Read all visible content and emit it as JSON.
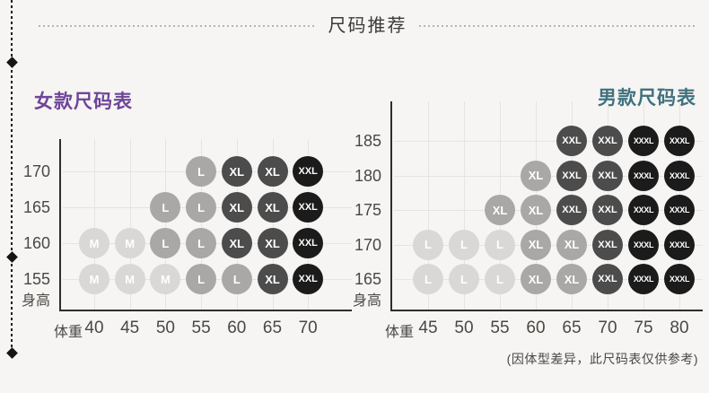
{
  "page": {
    "background": "#f6f5f3",
    "header_title": "尺码推荐",
    "footnote": "(因体型差异，此尺码表仅供参考)"
  },
  "colors": {
    "women_title": "#6f459a",
    "men_title": "#40717f",
    "size_light": "#d9d8d6",
    "size_medium": "#a9a8a6",
    "size_dark": "#4c4c4c",
    "size_black": "#1b1b1b",
    "axis": "#2e2d2b",
    "gridline": "#e6e4e0"
  },
  "chart_data": [
    {
      "type": "scatter",
      "title": "女款尺码表",
      "title_color": "#6f459a",
      "xlabel": "体重",
      "ylabel": "身高",
      "x_ticks": [
        "40",
        "45",
        "50",
        "55",
        "60",
        "65",
        "70"
      ],
      "y_ticks": [
        "170",
        "165",
        "160",
        "155"
      ],
      "grid": true,
      "legend": "none",
      "size_colors": {
        "M": "#d9d8d6",
        "L": "#a9a8a6",
        "XL": "#4c4c4c",
        "XXL": "#1b1b1b"
      },
      "matrix": [
        [
          null,
          null,
          null,
          "L",
          "XL",
          "XL",
          "XXL"
        ],
        [
          null,
          null,
          "L",
          "L",
          "XL",
          "XL",
          "XXL"
        ],
        [
          "M",
          "M",
          "L",
          "L",
          "XL",
          "XL",
          "XXL"
        ],
        [
          "M",
          "M",
          "M",
          "L",
          "L",
          "XL",
          "XXL"
        ]
      ]
    },
    {
      "type": "scatter",
      "title": "男款尺码表",
      "title_color": "#40717f",
      "xlabel": "体重",
      "ylabel": "身高",
      "x_ticks": [
        "45",
        "50",
        "55",
        "60",
        "65",
        "70",
        "75",
        "80"
      ],
      "y_ticks": [
        "185",
        "180",
        "175",
        "170",
        "165"
      ],
      "grid": true,
      "legend": "none",
      "size_colors": {
        "L": "#d9d8d6",
        "XL": "#a9a8a6",
        "XXL": "#4c4c4c",
        "XXXL": "#1b1b1b"
      },
      "matrix": [
        [
          null,
          null,
          null,
          null,
          "XXL",
          "XXL",
          "XXXL",
          "XXXL"
        ],
        [
          null,
          null,
          null,
          "XL",
          "XXL",
          "XXL",
          "XXXL",
          "XXXL"
        ],
        [
          null,
          null,
          "XL",
          "XL",
          "XXL",
          "XXL",
          "XXXL",
          "XXXL"
        ],
        [
          "L",
          "L",
          "L",
          "XL",
          "XL",
          "XXL",
          "XXXL",
          "XXXL"
        ],
        [
          "L",
          "L",
          "L",
          "XL",
          "XL",
          "XXL",
          "XXXL",
          "XXXL"
        ]
      ]
    }
  ]
}
